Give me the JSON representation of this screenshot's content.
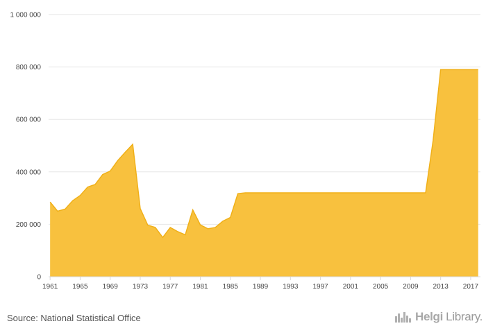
{
  "chart_data": {
    "type": "area",
    "x": [
      1961,
      1962,
      1963,
      1964,
      1965,
      1966,
      1967,
      1968,
      1969,
      1970,
      1971,
      1972,
      1973,
      1974,
      1975,
      1976,
      1977,
      1978,
      1979,
      1980,
      1981,
      1982,
      1983,
      1984,
      1985,
      1986,
      1987,
      1988,
      1989,
      1990,
      1991,
      1992,
      1993,
      1994,
      1995,
      1996,
      1997,
      1998,
      1999,
      2000,
      2001,
      2002,
      2003,
      2004,
      2005,
      2006,
      2007,
      2008,
      2009,
      2010,
      2011,
      2012,
      2013,
      2014,
      2015,
      2016,
      2017,
      2018
    ],
    "values": [
      285000,
      250000,
      258000,
      290000,
      310000,
      342000,
      352000,
      390000,
      403000,
      443000,
      475000,
      505000,
      260000,
      197000,
      188000,
      150000,
      188000,
      172000,
      160000,
      255000,
      198000,
      183000,
      188000,
      212000,
      226000,
      317000,
      320000,
      320000,
      320000,
      320000,
      320000,
      320000,
      320000,
      320000,
      320000,
      320000,
      320000,
      320000,
      320000,
      320000,
      320000,
      320000,
      320000,
      320000,
      320000,
      320000,
      320000,
      320000,
      320000,
      320000,
      320000,
      520000,
      790000,
      790000,
      790000,
      790000,
      790000,
      790000
    ],
    "x_ticks": [
      "1961",
      "1965",
      "1969",
      "1973",
      "1977",
      "1981",
      "1985",
      "1989",
      "1993",
      "1997",
      "2001",
      "2005",
      "2009",
      "2013",
      "2017"
    ],
    "y_ticks": [
      "0",
      "200 000",
      "400 000",
      "600 000",
      "800 000",
      "1 000 000"
    ],
    "ylim": [
      0,
      1000000
    ],
    "xlim": [
      1960.8,
      2018.3
    ],
    "grid": "horizontal",
    "colors": {
      "fill": "#f8c13e",
      "line": "#f0b018",
      "grid": "#e6e6e6",
      "axis": "#d8d8d8"
    }
  },
  "footer": {
    "source": "Source: National Statistical Office",
    "logo_bold": "Helgi",
    "logo_light": "Library."
  }
}
